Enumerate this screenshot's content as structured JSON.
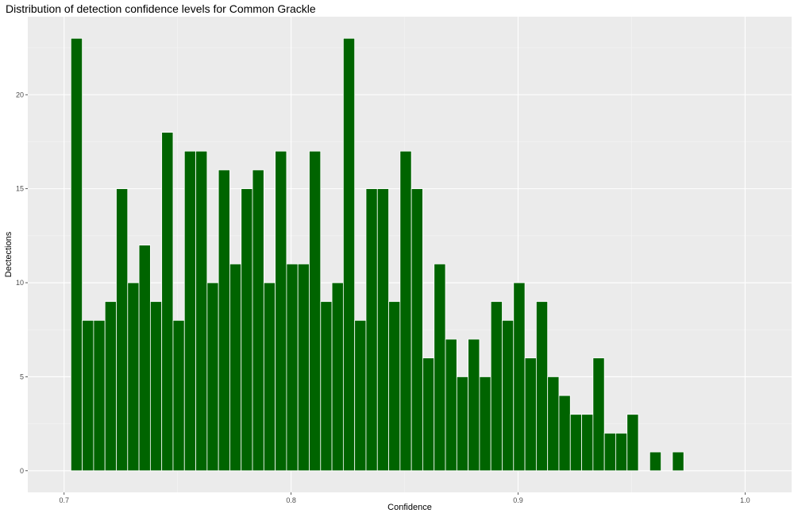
{
  "chart_data": {
    "type": "bar",
    "title": "Distribution of detection confidence levels for Common Grackle",
    "xlabel": "Confidence",
    "ylabel": "Dectections",
    "xlim": [
      0.684,
      1.0205
    ],
    "ylim": [
      -1.15,
      24.15
    ],
    "x_ticks": [
      0.7,
      0.8,
      0.9,
      1.0
    ],
    "x_tick_labels": [
      "0.7",
      "0.8",
      "0.9",
      "1.0"
    ],
    "y_ticks": [
      0,
      5,
      10,
      15,
      20
    ],
    "y_tick_labels": [
      "0",
      "5",
      "10",
      "15",
      "20"
    ],
    "bin_width": 0.005,
    "bin_centers": [
      0.7055,
      0.7105,
      0.7155,
      0.7205,
      0.7255,
      0.7305,
      0.7355,
      0.7405,
      0.7455,
      0.7505,
      0.7555,
      0.7605,
      0.7655,
      0.7705,
      0.7755,
      0.7805,
      0.7855,
      0.7905,
      0.7955,
      0.8005,
      0.8055,
      0.8105,
      0.8155,
      0.8205,
      0.8255,
      0.8305,
      0.8355,
      0.8405,
      0.8455,
      0.8505,
      0.8555,
      0.8605,
      0.8655,
      0.8705,
      0.8755,
      0.8805,
      0.8855,
      0.8905,
      0.8955,
      0.9005,
      0.9055,
      0.9105,
      0.9155,
      0.9205,
      0.9255,
      0.9305,
      0.9355,
      0.9405,
      0.9455,
      0.9505,
      0.9555,
      0.9605,
      0.9655,
      0.9705
    ],
    "values": [
      23,
      8,
      8,
      9,
      15,
      10,
      12,
      9,
      18,
      8,
      17,
      17,
      10,
      16,
      11,
      15,
      16,
      10,
      17,
      11,
      11,
      17,
      9,
      10,
      23,
      8,
      15,
      15,
      9,
      17,
      15,
      6,
      11,
      7,
      5,
      7,
      5,
      9,
      8,
      10,
      6,
      9,
      5,
      4,
      3,
      3,
      6,
      2,
      2,
      3,
      0,
      1,
      0,
      1
    ],
    "grid": true,
    "legend": "none",
    "colors": {
      "bar_fill": "#006400",
      "bar_outline": "#ffffff",
      "panel_background": "#ebebeb",
      "grid_major": "#ffffff",
      "grid_minor": "#f5f5f5",
      "tick_label": "#4d4d4d",
      "tick_mark": "#333333"
    }
  }
}
